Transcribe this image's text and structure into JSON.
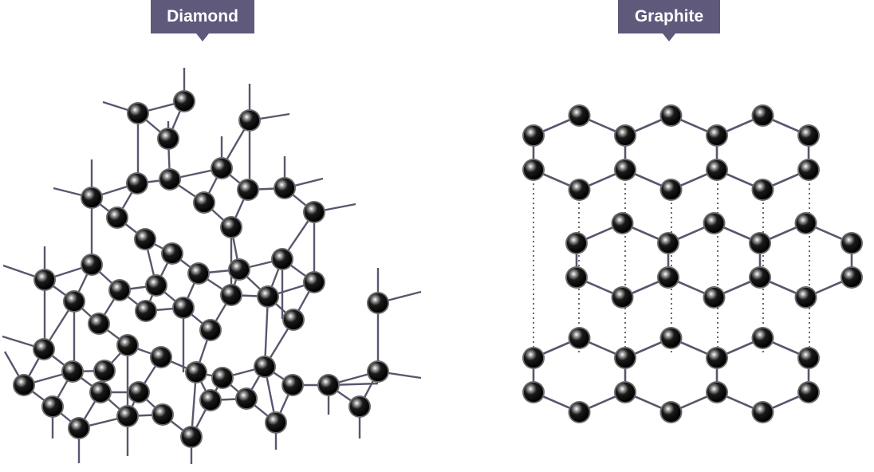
{
  "labels": {
    "diamond": "Diamond",
    "graphite": "Graphite"
  },
  "colors": {
    "label_background": "#5f5a7c",
    "label_text": "#ffffff",
    "bond": "#5a566e",
    "atom": "#111111",
    "atom_rim": "#6a6a6a",
    "interlayer_dots": "#444444"
  }
}
